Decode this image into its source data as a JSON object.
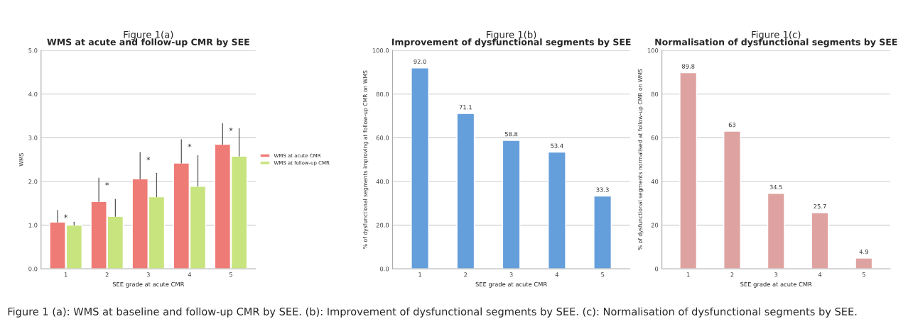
{
  "chart_data": [
    {
      "type": "bar",
      "title": "Figure 1(a)",
      "subtitle": "WMS at acute and follow-up CMR by SEE",
      "xlabel": "SEE grade at acute CMR",
      "ylabel": "WMS",
      "categories": [
        "1",
        "2",
        "3",
        "4",
        "5"
      ],
      "series": [
        {
          "name": "WMS at acute CMR",
          "color": "#ee7b76",
          "values": [
            1.07,
            1.54,
            2.06,
            2.42,
            2.85
          ],
          "errors": [
            [
              1.07,
              1.34
            ],
            [
              1.54,
              2.08
            ],
            [
              2.06,
              2.66
            ],
            [
              2.42,
              2.96
            ],
            [
              2.85,
              3.33
            ]
          ]
        },
        {
          "name": "WMS at follow-up CMR",
          "color": "#c8e47e",
          "values": [
            1.0,
            1.2,
            1.65,
            1.89,
            2.58
          ],
          "errors": [
            [
              1.0,
              1.07
            ],
            [
              1.2,
              1.59
            ],
            [
              1.65,
              2.19
            ],
            [
              1.89,
              2.59
            ],
            [
              2.58,
              3.21
            ]
          ]
        }
      ],
      "ylim": [
        0,
        5
      ],
      "yticks": [
        {
          "value": 0,
          "label": "0.0"
        },
        {
          "value": 1,
          "label": "1.0"
        },
        {
          "value": 2,
          "label": "2.0"
        },
        {
          "value": 3,
          "label": "3.0"
        },
        {
          "value": 4,
          "label": "4.0"
        },
        {
          "value": 5,
          "label": "5.0"
        }
      ],
      "grid": "y",
      "legend": "right",
      "annotations": [
        "*",
        "*",
        "*",
        "*",
        "*"
      ]
    },
    {
      "type": "bar",
      "title": "Figure 1(b)",
      "subtitle": "Improvement of dysfunctional segments by SEE",
      "xlabel": "SEE grade at acute CMR",
      "ylabel": "% of dysfunctional segments improving at follow-up CMR on WMS",
      "categories": [
        "1",
        "2",
        "3",
        "4",
        "5"
      ],
      "values": [
        92.0,
        71.1,
        58.8,
        53.4,
        33.3
      ],
      "value_labels": [
        "92.0",
        "71.1",
        "58.8",
        "53.4",
        "33.3"
      ],
      "color": "#659fdb",
      "ylim": [
        0,
        100
      ],
      "yticks": [
        {
          "value": 0,
          "label": "0.0"
        },
        {
          "value": 20,
          "label": "20.0"
        },
        {
          "value": 40,
          "label": "40.0"
        },
        {
          "value": 60,
          "label": "60.0"
        },
        {
          "value": 80,
          "label": "80.0"
        },
        {
          "value": 100,
          "label": "100.0"
        }
      ],
      "grid": "y"
    },
    {
      "type": "bar",
      "title": "Figure 1(c)",
      "subtitle": "Normalisation of dysfunctional segments by SEE",
      "xlabel": "SEE grade at acute CMR",
      "ylabel": "% of dysfunctional segments normalised at follow-up CMR on WMS",
      "categories": [
        "1",
        "2",
        "3",
        "4",
        "5"
      ],
      "values": [
        89.8,
        63,
        34.5,
        25.7,
        4.9
      ],
      "data_labels": true,
      "color": "#dea3a1",
      "ylim": [
        0,
        100
      ],
      "yticks": [
        0,
        20,
        40,
        60,
        80,
        100
      ],
      "grid": "y",
      "annotations": [
        "Figure 1 (a): WMS at baseline and follow-up CMR by SEE. (b): Improvement of dysfunctional segments by SEE. (c): Normalisation of dysfunctional segments by SEE."
      ]
    }
  ]
}
